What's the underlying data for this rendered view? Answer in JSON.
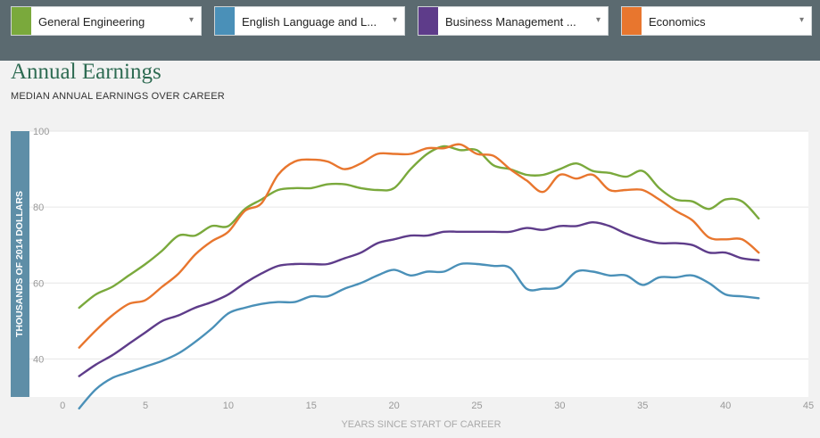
{
  "selectors": [
    {
      "label": "General Engineering",
      "color": "#7aa93c"
    },
    {
      "label": "English Language and L...",
      "color": "#4a90b8"
    },
    {
      "label": "Business Management ...",
      "color": "#5e3c8a"
    },
    {
      "label": "Economics",
      "color": "#e8762e"
    }
  ],
  "dropdown_icon": "▾",
  "chart_data": {
    "type": "line",
    "title": "Annual Earnings",
    "subtitle": "MEDIAN ANNUAL EARNINGS OVER CAREER",
    "xlabel": "YEARS SINCE START OF CAREER",
    "ylabel": "THOUSANDS OF 2014 DOLLARS",
    "xlim": [
      -2,
      45
    ],
    "ylim": [
      30,
      100
    ],
    "xticks": [
      0,
      5,
      10,
      15,
      20,
      25,
      30,
      35,
      40,
      45
    ],
    "yticks": [
      40,
      60,
      80,
      100
    ],
    "grid": true,
    "series": [
      {
        "name": "General Engineering",
        "color": "#7aa93c",
        "values": [
          53.5,
          57,
          59,
          62,
          65,
          68.5,
          72.5,
          72.5,
          75,
          75,
          79.5,
          82,
          84.5,
          85,
          85,
          86,
          86,
          85,
          84.5,
          85,
          90,
          94,
          96,
          95,
          95,
          91,
          90,
          88.5,
          88.5,
          90,
          91.5,
          89.5,
          89,
          88,
          89.5,
          85,
          82,
          81.5,
          79.5,
          82,
          81.5,
          77
        ]
      },
      {
        "name": "English Language and L...",
        "color": "#4a90b8",
        "values": [
          27,
          32,
          35,
          36.5,
          38,
          39.5,
          41.5,
          44.5,
          48,
          52,
          53.5,
          54.5,
          55,
          55,
          56.5,
          56.5,
          58.5,
          60,
          62,
          63.5,
          62,
          63,
          63,
          65,
          65,
          64.5,
          64,
          58.5,
          58.5,
          59,
          63,
          63,
          62,
          62,
          59.5,
          61.5,
          61.5,
          62,
          60,
          57,
          56.5,
          56
        ]
      },
      {
        "name": "Business Management ...",
        "color": "#5e3c8a",
        "values": [
          35.5,
          38.5,
          41,
          44,
          47,
          50,
          51.5,
          53.5,
          55,
          57,
          60,
          62.5,
          64.5,
          65,
          65,
          65,
          66.5,
          68,
          70.5,
          71.5,
          72.5,
          72.5,
          73.5,
          73.5,
          73.5,
          73.5,
          73.5,
          74.5,
          74,
          75,
          75,
          76,
          75,
          73,
          71.5,
          70.5,
          70.5,
          70,
          68,
          68,
          66.5,
          66
        ]
      },
      {
        "name": "Economics",
        "color": "#e8762e",
        "values": [
          43,
          47.5,
          51.5,
          54.5,
          55.5,
          59,
          62.5,
          67.5,
          71,
          73.5,
          79,
          81,
          88.5,
          92,
          92.5,
          92,
          90,
          91.5,
          94,
          94,
          94,
          95.5,
          95.5,
          96.5,
          94,
          93.5,
          90,
          87,
          84,
          88.5,
          87.5,
          88.5,
          84.5,
          84.5,
          84.5,
          82,
          79,
          76.5,
          72,
          71.5,
          71.5,
          68
        ]
      }
    ],
    "x": [
      1,
      2,
      3,
      4,
      5,
      6,
      7,
      8,
      9,
      10,
      11,
      12,
      13,
      14,
      15,
      16,
      17,
      18,
      19,
      20,
      21,
      22,
      23,
      24,
      25,
      26,
      27,
      28,
      29,
      30,
      31,
      32,
      33,
      34,
      35,
      36,
      37,
      38,
      39,
      40,
      41,
      42
    ]
  }
}
